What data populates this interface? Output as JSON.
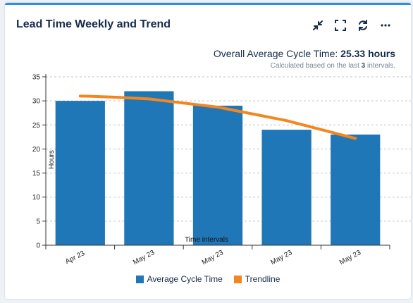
{
  "widget": {
    "title": "Lead Time Weekly and Trend",
    "toolbar": {
      "collapse_icon": "collapse-arrows-icon",
      "fullscreen_icon": "fullscreen-icon",
      "refresh_icon": "refresh-icon",
      "more_icon": "ellipsis-icon"
    }
  },
  "summary": {
    "label": "Overall Average Cycle Time:",
    "value": "25.33 hours",
    "calc_prefix": "Calculated based on the last",
    "calc_count": "3",
    "calc_suffix": "intervals."
  },
  "colors": {
    "bar": "#2077b8",
    "trend": "#f5861f",
    "accent": "#2e8bf0"
  },
  "chart_data": {
    "type": "bar",
    "categories": [
      "Apr 23",
      "May 23",
      "May 23",
      "May 23",
      "May 23"
    ],
    "series": [
      {
        "name": "Average Cycle Time",
        "type": "bar",
        "values": [
          30,
          32,
          29,
          24,
          23
        ]
      },
      {
        "name": "Trendline",
        "type": "line",
        "values": [
          31.0,
          30.4,
          28.7,
          25.9,
          22.2
        ]
      }
    ],
    "xlabel": "Time intervals",
    "ylabel": "Hours",
    "ylim": [
      0,
      35
    ],
    "yticks": [
      0,
      5,
      10,
      15,
      20,
      25,
      30,
      35
    ],
    "grid": true,
    "legend_position": "bottom"
  }
}
